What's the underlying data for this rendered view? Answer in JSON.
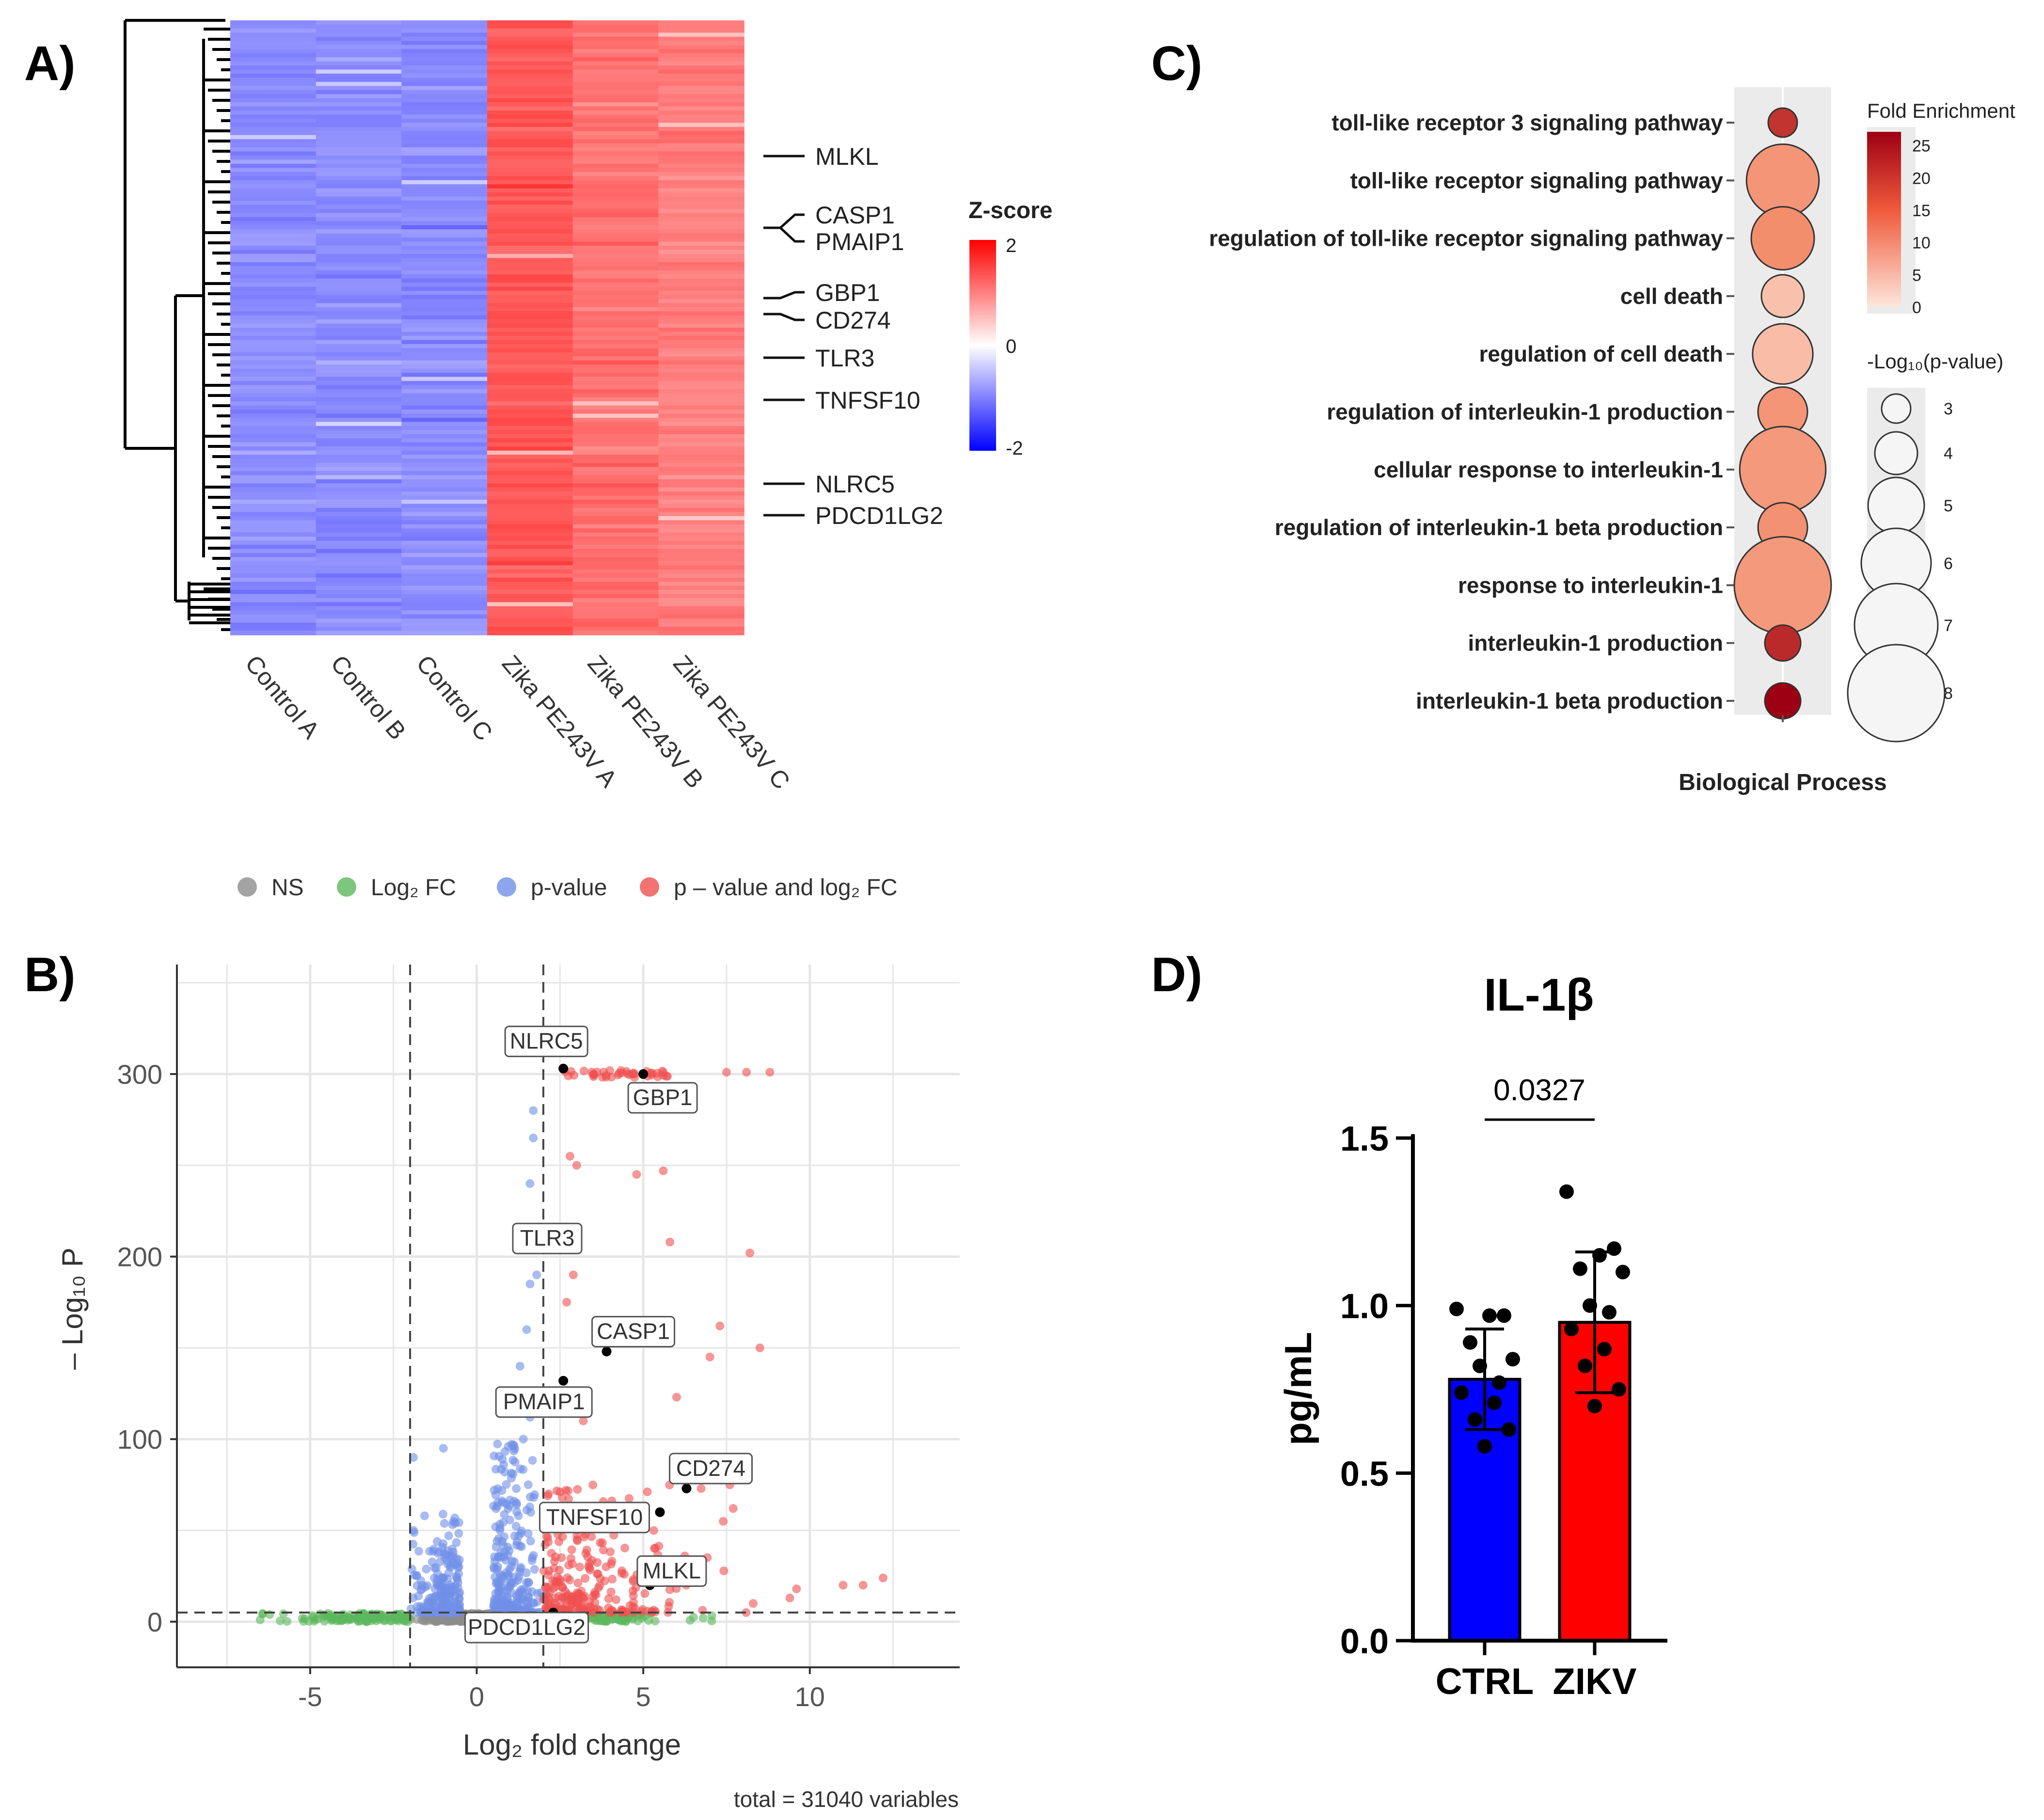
{
  "panels": {
    "a": "A)",
    "b": "B)",
    "c": "C)",
    "d": "D)"
  },
  "chart_data": [
    {
      "id": "A",
      "type": "heatmap",
      "title": "",
      "columns": [
        "Control A",
        "Control B",
        "Control C",
        "Zika PE243V A",
        "Zika PE243V B",
        "Zika PE243V C"
      ],
      "row_summary": [
        -0.9,
        -0.9,
        -0.9,
        1.3,
        1.1,
        1.0
      ],
      "highlighted_genes": [
        "MLKL",
        "CASP1",
        "PMAIP1",
        "GBP1",
        "CD274",
        "TLR3",
        "TNFSF10",
        "NLRC5",
        "PDCD1LG2"
      ],
      "legend_title": "Z-score",
      "legend_ticks": [
        "2",
        "0",
        "-2"
      ],
      "colors": {
        "low": "#0000ff",
        "mid": "#ffffff",
        "high": "#ff0000"
      }
    },
    {
      "id": "B",
      "type": "scatter",
      "legend": [
        {
          "label": "NS",
          "color": "#8c8c8c"
        },
        {
          "label": "Log₂ FC",
          "color": "#5cb85c"
        },
        {
          "label": "p-value",
          "color": "#6f8fe8"
        },
        {
          "label": "p – value and log₂ FC",
          "color": "#f05050"
        }
      ],
      "xlabel": "Log₂ fold change",
      "ylabel": "– Log₁₀ P",
      "xlim": [
        -9,
        14.5
      ],
      "ylim": [
        -25,
        360
      ],
      "x_ticks": [
        -5,
        0,
        5,
        10
      ],
      "x_tick_labels": [
        "-5",
        "0",
        "5",
        "10"
      ],
      "y_ticks": [
        0,
        100,
        200,
        300
      ],
      "y_tick_labels": [
        "0",
        "100",
        "200",
        "300"
      ],
      "fc_cutoff": [
        -2,
        2
      ],
      "p_cutoff": 5,
      "caption": "total = 31040 variables",
      "labeled_genes": [
        {
          "gene": "NLRC5",
          "x": 2.6,
          "y": 303
        },
        {
          "gene": "GBP1",
          "x": 5.0,
          "y": 300
        },
        {
          "gene": "TLR3",
          "x": 2.7,
          "y": 207
        },
        {
          "gene": "CASP1",
          "x": 3.9,
          "y": 148
        },
        {
          "gene": "PMAIP1",
          "x": 2.6,
          "y": 132
        },
        {
          "gene": "CD274",
          "x": 6.3,
          "y": 73
        },
        {
          "gene": "TNFSF10",
          "x": 5.5,
          "y": 60
        },
        {
          "gene": "MLKL",
          "x": 5.2,
          "y": 20
        },
        {
          "gene": "PDCD1LG2",
          "x": 2.3,
          "y": 5
        }
      ]
    },
    {
      "id": "C",
      "type": "scatter",
      "xlabel": "Biological Process",
      "terms": [
        {
          "term": "toll-like receptor 3 signaling pathway",
          "fold_enrichment": 20.5,
          "neglog10p": 3.0
        },
        {
          "term": "toll-like receptor signaling pathway",
          "fold_enrichment": 9.5,
          "neglog10p": 6.2
        },
        {
          "term": "regulation of toll-like receptor signaling pathway",
          "fold_enrichment": 10.5,
          "neglog10p": 5.5
        },
        {
          "term": "cell death",
          "fold_enrichment": 4.0,
          "neglog10p": 4.0
        },
        {
          "term": "regulation of cell death",
          "fold_enrichment": 4.5,
          "neglog10p": 5.3
        },
        {
          "term": "regulation of interleukin-1 production",
          "fold_enrichment": 9.5,
          "neglog10p": 4.5
        },
        {
          "term": "cellular response to interleukin-1",
          "fold_enrichment": 9.0,
          "neglog10p": 7.2
        },
        {
          "term": "regulation of interleukin-1 beta production",
          "fold_enrichment": 10.0,
          "neglog10p": 4.5
        },
        {
          "term": "response to interleukin-1",
          "fold_enrichment": 9.0,
          "neglog10p": 8.0
        },
        {
          "term": "interleukin-1 production",
          "fold_enrichment": 21.5,
          "neglog10p": 3.5
        },
        {
          "term": "interleukin-1 beta production",
          "fold_enrichment": 26.0,
          "neglog10p": 3.5
        }
      ],
      "color_legend_title": "Fold Enrichment",
      "color_ticks": [
        25,
        20,
        15,
        10,
        5,
        0
      ],
      "color_tick_labels": [
        "25",
        "20",
        "15",
        "10",
        "5",
        "0"
      ],
      "size_legend_title": "-Log₁₀(p-value)",
      "size_ticks": [
        3,
        4,
        5,
        6,
        7,
        8
      ],
      "size_tick_labels": [
        "3",
        "4",
        "5",
        "6",
        "7",
        "8"
      ],
      "colors": {
        "low": "#fde0d2",
        "high": "#9e0013"
      }
    },
    {
      "id": "D",
      "type": "bar",
      "title": "IL-1β",
      "ylabel": "pg/mL",
      "categories": [
        "CTRL",
        "ZIKV"
      ],
      "values": [
        0.78,
        0.95
      ],
      "sd": [
        0.15,
        0.21
      ],
      "ylim": [
        0,
        1.5
      ],
      "y_ticks": [
        0.0,
        0.5,
        1.0,
        1.5
      ],
      "y_tick_labels": [
        "0.0",
        "0.5",
        "1.0",
        "1.5"
      ],
      "colors": [
        "#0000ff",
        "#ff0000"
      ],
      "points": [
        [
          0.99,
          0.97,
          0.97,
          0.89,
          0.84,
          0.82,
          0.77,
          0.74,
          0.71,
          0.66,
          0.63,
          0.58
        ],
        [
          1.34,
          1.17,
          1.15,
          1.11,
          1.1,
          1.0,
          0.98,
          0.93,
          0.87,
          0.82,
          0.75,
          0.7
        ]
      ],
      "p_value_label": "0.0327"
    }
  ]
}
